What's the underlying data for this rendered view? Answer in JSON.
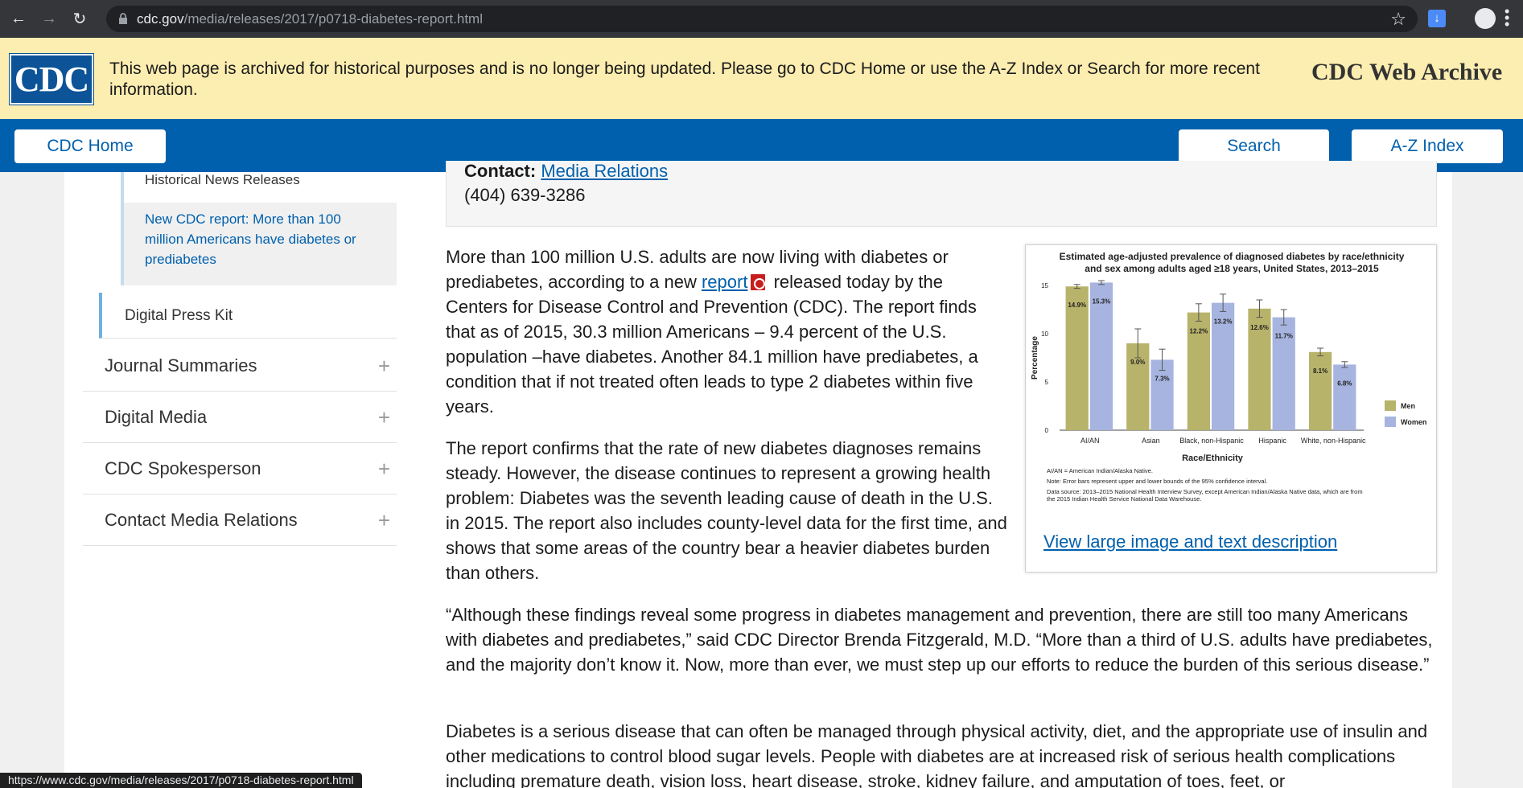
{
  "browser": {
    "url_host": "cdc.gov",
    "url_path": "/media/releases/2017/p0718-diabetes-report.html",
    "status_url": "https://www.cdc.gov/media/releases/2017/p0718-diabetes-report.html"
  },
  "banner": {
    "logo_text": "CDC",
    "message": "This web page is archived for historical purposes and is no longer being updated. Please go to CDC Home or use the A-Z Index or Search for more recent information.",
    "title": "CDC Web Archive",
    "color": "#fcedb0"
  },
  "nav": {
    "home": "CDC Home",
    "search": "Search",
    "az": "A-Z Index",
    "color": "#0060ad"
  },
  "sidebar": {
    "historical": "Historical News Releases",
    "current": "New CDC report: More than 100 million Americans have diabetes or prediabetes",
    "digital_press_kit": "Digital Press Kit",
    "items": [
      {
        "label": "Journal Summaries",
        "icon": "+"
      },
      {
        "label": "Digital Media",
        "icon": "+"
      },
      {
        "label": "CDC Spokesperson",
        "icon": "+"
      },
      {
        "label": "Contact Media Relations",
        "icon": "+"
      }
    ]
  },
  "contact": {
    "label": "Contact:",
    "link": "Media Relations",
    "phone": "(404) 639-3286"
  },
  "article": {
    "p1_before": "More than 100 million U.S. adults are now living with diabetes or prediabetes, according to a new ",
    "p1_link": "report",
    "p1_after": " released today by the Centers for Disease Control and Prevention (CDC). The report finds that as of 2015, 30.3 million Americans – 9.4 percent of the U.S. population –have diabetes. Another 84.1 million have prediabetes, a condition that if not treated often leads to type 2 diabetes within five years.",
    "p2": "The report confirms that the rate of new diabetes diagnoses remains steady. However, the disease continues to represent a growing health problem: Diabetes was the seventh leading cause of death in the U.S. in 2015. The report also includes county-level data for the first time, and shows that some areas of the country bear a heavier diabetes burden than others.",
    "p3": "“Although these findings reveal some progress in diabetes management and prevention, there are still too many Americans with diabetes and prediabetes,” said CDC Director Brenda Fitzgerald, M.D. “More than a third of U.S. adults have prediabetes, and the majority don’t know it. Now, more than ever, we must step up our efforts to reduce the burden of this serious disease.”",
    "p4": "Diabetes is a serious disease that can often be managed through physical activity, diet, and the appropriate use of insulin and other medications to control blood sugar levels. People with diabetes are at increased risk of serious health complications including premature death, vision loss, heart disease, stroke, kidney failure, and amputation of toes, feet, or"
  },
  "figure": {
    "link": "View large image and text description",
    "notes": [
      "AI/AN = American Indian/Alaska Native.",
      "Note: Error bars represent upper and lower bounds of the 95% confidence interval.",
      "Data source: 2013–2015 National Health Interview Survey, except American Indian/Alaska Native data, which are from",
      "the 2015 Indian Health Service National Data Warehouse."
    ]
  },
  "chart_data": {
    "type": "bar",
    "title": "Estimated age-adjusted prevalence of diagnosed diabetes by race/ethnicity and sex among adults aged ≥18 years, United States, 2013–2015",
    "title_line1": "Estimated age-adjusted prevalence of diagnosed diabetes by race/ethnicity",
    "title_line2": "and sex among adults aged ≥18 years, United States, 2013–2015",
    "xlabel": "Race/Ethnicity",
    "ylabel": "Percentage",
    "ylim": [
      0,
      15
    ],
    "yticks": [
      0,
      5,
      10,
      15
    ],
    "categories": [
      "AI/AN",
      "Asian",
      "Black, non-Hispanic",
      "Hispanic",
      "White, non-Hispanic"
    ],
    "series": [
      {
        "name": "Men",
        "color": "#b8b36a",
        "values": [
          14.9,
          9.0,
          12.2,
          12.6,
          8.1
        ],
        "labels": [
          "14.9%",
          "9.0%",
          "12.2%",
          "12.6%",
          "8.1%"
        ],
        "err": [
          0.2,
          1.5,
          0.9,
          0.9,
          0.4
        ]
      },
      {
        "name": "Women",
        "color": "#a7b4e0",
        "values": [
          15.3,
          7.3,
          13.2,
          11.7,
          6.8
        ],
        "labels": [
          "15.3%",
          "7.3%",
          "13.2%",
          "11.7%",
          "6.8%"
        ],
        "err": [
          0.2,
          1.1,
          0.9,
          0.8,
          0.3
        ]
      }
    ],
    "legend": "right",
    "grid": false
  }
}
